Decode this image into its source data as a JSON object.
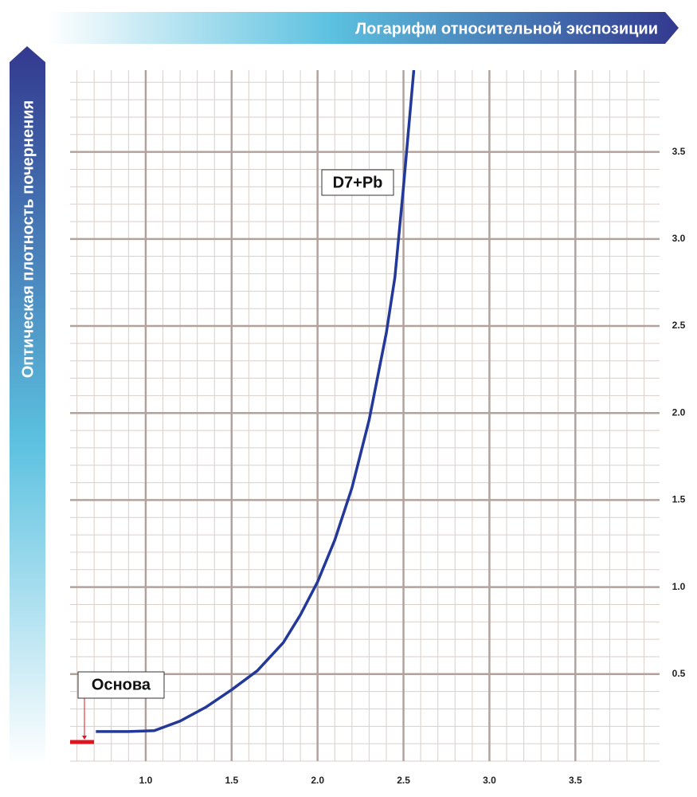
{
  "chart_data": {
    "type": "line",
    "x_label": "Логарифм  относительной  экспозиции",
    "y_label": "Оптическая  плотность  почернения",
    "series": [
      {
        "name": "D7+Pb",
        "color": "#23399a",
        "x": [
          0.71,
          0.9,
          1.05,
          1.2,
          1.35,
          1.5,
          1.65,
          1.8,
          1.9,
          2.0,
          2.1,
          2.2,
          2.3,
          2.4,
          2.45,
          2.5,
          2.56
        ],
        "values": [
          0.17,
          0.17,
          0.175,
          0.23,
          0.31,
          0.41,
          0.52,
          0.68,
          0.84,
          1.03,
          1.27,
          1.57,
          1.96,
          2.46,
          2.78,
          3.3,
          3.97
        ]
      }
    ],
    "base": {
      "label": "Основа",
      "value": 0.11,
      "color": "#e0141e"
    },
    "xlim": [
      0.56,
      3.99
    ],
    "ylim": [
      0,
      3.97
    ],
    "xticks": [
      {
        "value": 1,
        "label": "1.0"
      },
      1.5,
      {
        "value": 2,
        "label": "2.0"
      },
      2.5,
      {
        "value": 3,
        "label": "3.0"
      },
      3.5
    ],
    "yticks": [
      0.5,
      {
        "value": 1,
        "label": "1.0"
      },
      1.5,
      {
        "value": 2,
        "label": "2.0"
      },
      2.5,
      {
        "value": 3,
        "label": "3.0"
      },
      3.5
    ],
    "minor_grid": 0.1,
    "grid": true
  }
}
